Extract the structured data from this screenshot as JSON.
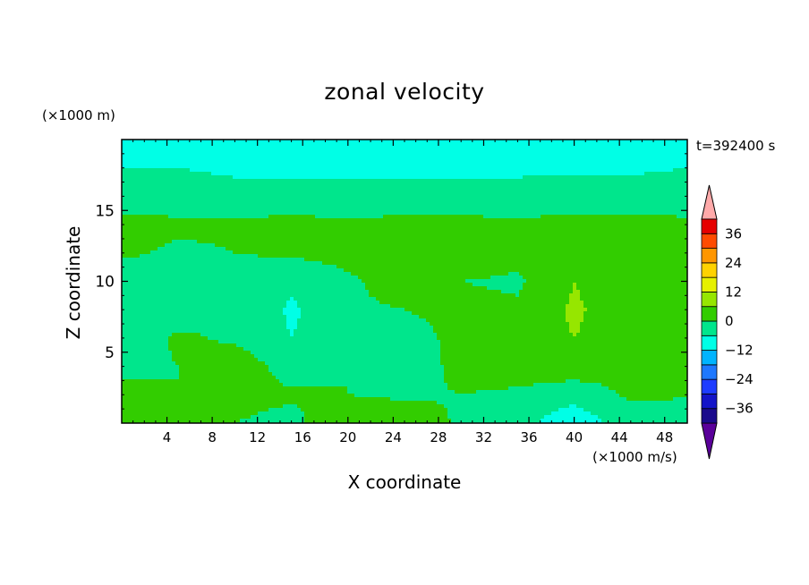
{
  "chart_data": {
    "type": "heatmap",
    "title": "zonal velocity",
    "xlabel": "X coordinate",
    "ylabel": "Z coordinate",
    "x_unit": "(×1000 m/s)",
    "y_unit": "(×1000 m)",
    "time_label": "t=392400 s",
    "xlim": [
      0,
      50
    ],
    "ylim": [
      0,
      20
    ],
    "x_ticks": [
      4,
      8,
      12,
      16,
      20,
      24,
      28,
      32,
      36,
      40,
      44,
      48
    ],
    "y_ticks": [
      5,
      10,
      15
    ],
    "colorbar": {
      "levels": [
        -42,
        -36,
        -30,
        -24,
        -18,
        -12,
        -6,
        0,
        6,
        12,
        18,
        24,
        30,
        36,
        42
      ],
      "colors": [
        "#5a009a",
        "#1a0a8c",
        "#1414c8",
        "#1e3cff",
        "#1e78ff",
        "#00b4ff",
        "#00ffe6",
        "#00e68c",
        "#32cd00",
        "#96e600",
        "#e6f000",
        "#ffd200",
        "#ff9600",
        "#ff4b00",
        "#e60000",
        "#ffaaaa"
      ],
      "tick_labels": [
        -36,
        -24,
        -12,
        0,
        12,
        24,
        36
      ],
      "extend": "both"
    },
    "field_grid": {
      "x": [
        0,
        5,
        10,
        15,
        20,
        25,
        30,
        35,
        40,
        45,
        50
      ],
      "z": [
        0,
        2,
        4,
        6,
        8,
        10,
        12,
        14,
        16,
        18,
        20
      ],
      "values": [
        [
          3,
          1,
          0,
          -2,
          6,
          4,
          -1,
          -4,
          -10,
          -3,
          -1
        ],
        [
          2,
          0,
          2,
          1,
          0,
          -1,
          0,
          -1,
          -4,
          1,
          0
        ],
        [
          -2,
          0,
          4,
          -3,
          0,
          -4,
          2,
          3,
          4,
          2,
          1
        ],
        [
          -4,
          1,
          -1,
          -6,
          -3,
          -3,
          2,
          3,
          6,
          3,
          1
        ],
        [
          -5,
          -3,
          0,
          -7,
          -1,
          0,
          2,
          1,
          7,
          2,
          0
        ],
        [
          -4,
          -2,
          -3,
          -5,
          -1,
          3,
          0,
          -1,
          6,
          1,
          0
        ],
        [
          1,
          -1,
          0,
          1,
          2,
          3,
          4,
          2,
          3,
          2,
          1
        ],
        [
          2,
          1,
          1,
          2,
          1,
          2,
          2,
          1,
          2,
          2,
          1
        ],
        [
          -3,
          -3,
          -4,
          -4,
          -4,
          -4,
          -4,
          -4,
          -3,
          -3,
          -3
        ],
        [
          -6,
          -6,
          -7,
          -7,
          -7,
          -7,
          -7,
          -7,
          -7,
          -7,
          -6
        ],
        [
          -7,
          -8,
          -8,
          -8,
          -8,
          -8,
          -8,
          -8,
          -8,
          -7,
          -7
        ]
      ]
    }
  }
}
